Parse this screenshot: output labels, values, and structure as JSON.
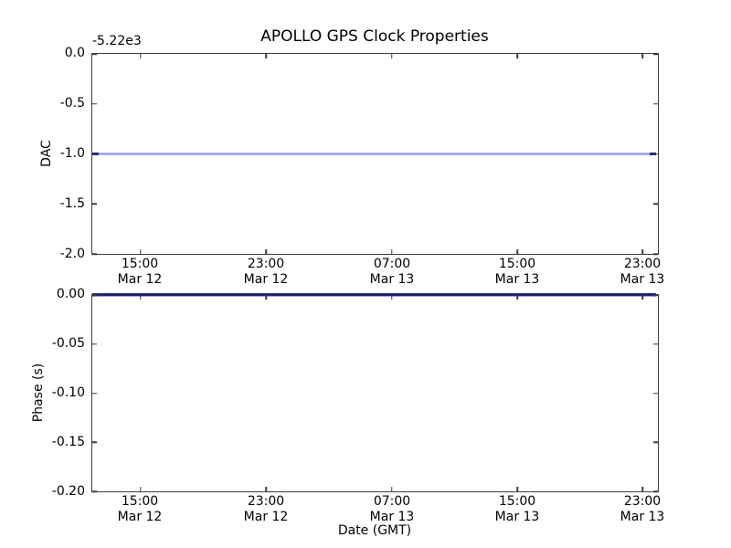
{
  "figure": {
    "title": "APOLLO GPS Clock Properties",
    "background_color": "#ffffff",
    "frame_color": "#3d3d3d",
    "text_color": "#000000"
  },
  "chart_data": [
    {
      "type": "line",
      "name": "dac-subplot",
      "title": "APOLLO GPS Clock Properties",
      "ylabel": "DAC",
      "y_offset_text": "-5.22e3",
      "ylim": [
        -2.0,
        0.0
      ],
      "yticks": [
        "0.0",
        "-0.5",
        "-1.0",
        "-1.5",
        "-2.0"
      ],
      "xticks": [
        {
          "time": "15:00",
          "date": "Mar 12"
        },
        {
          "time": "23:00",
          "date": "Mar 12"
        },
        {
          "time": "07:00",
          "date": "Mar 13"
        },
        {
          "time": "15:00",
          "date": "Mar 13"
        },
        {
          "time": "23:00",
          "date": "Mar 13"
        }
      ],
      "grid": false,
      "legend": null,
      "series": [
        {
          "name": "DAC",
          "color": "#8f92ee",
          "shape": "constant horizontal line",
          "y_value": -1.0,
          "y_value_with_offset": -5221.0
        }
      ]
    },
    {
      "type": "line",
      "name": "phase-subplot",
      "ylabel": "Phase (s)",
      "xlabel": "Date (GMT)",
      "ylim": [
        -0.2,
        0.0
      ],
      "yticks": [
        "0.00",
        "-0.05",
        "-0.10",
        "-0.15",
        "-0.20"
      ],
      "xticks": [
        {
          "time": "15:00",
          "date": "Mar 12"
        },
        {
          "time": "23:00",
          "date": "Mar 12"
        },
        {
          "time": "07:00",
          "date": "Mar 13"
        },
        {
          "time": "15:00",
          "date": "Mar 13"
        },
        {
          "time": "23:00",
          "date": "Mar 13"
        }
      ],
      "grid": false,
      "legend": null,
      "series": [
        {
          "name": "Phase",
          "color": "#232370",
          "shape": "constant horizontal line on top axis edge",
          "y_value": 0.0
        }
      ]
    }
  ]
}
